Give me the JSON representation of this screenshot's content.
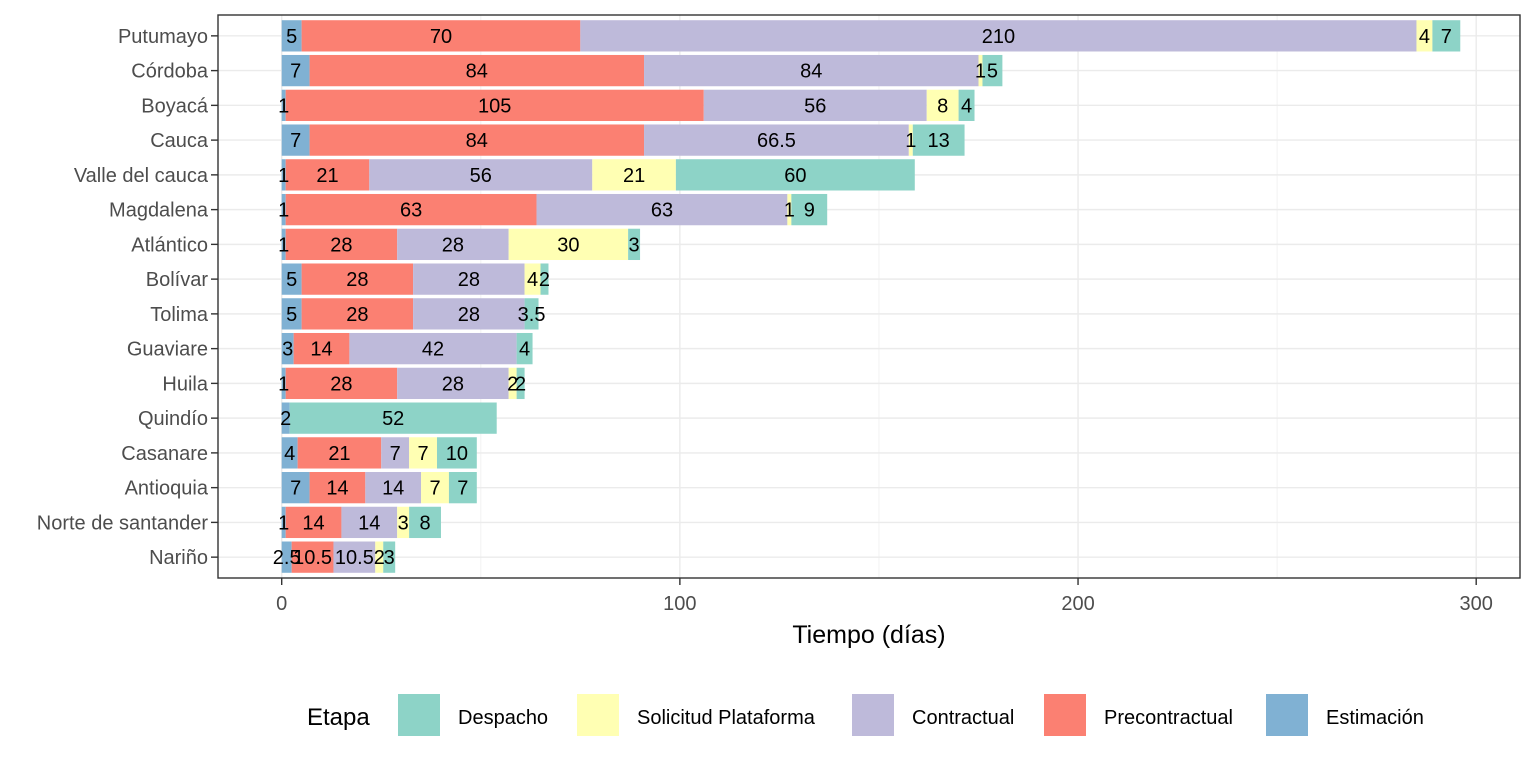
{
  "chart_data": {
    "type": "bar",
    "orientation": "horizontal",
    "stacked": true,
    "title": "",
    "xlabel": "Tiempo (días)",
    "ylabel": "",
    "xlim": [
      -16,
      311
    ],
    "xticks": [
      0,
      100,
      200,
      300
    ],
    "grid": true,
    "legend": {
      "title": "Etapa",
      "position": "bottom",
      "entries": [
        "Despacho",
        "Solicitud Plataforma",
        "Contractual",
        "Precontractual",
        "Estimación"
      ]
    },
    "stack_order": [
      "Estimación",
      "Precontractual",
      "Contractual",
      "Solicitud Plataforma",
      "Despacho"
    ],
    "colors": {
      "Despacho": "#8DD3C7",
      "Solicitud Plataforma": "#FFFFB3",
      "Contractual": "#BEBADA",
      "Precontractual": "#FB8072",
      "Estimación": "#80B1D3"
    },
    "categories": [
      "Putumayo",
      "Córdoba",
      "Boyacá",
      "Cauca",
      "Valle del cauca",
      "Magdalena",
      "Atlántico",
      "Bolívar",
      "Tolima",
      "Guaviare",
      "Huila",
      "Quindío",
      "Casanare",
      "Antioquia",
      "Norte de santander",
      "Nariño"
    ],
    "series": [
      {
        "name": "Estimación",
        "values": [
          5,
          7,
          1,
          7,
          1,
          1,
          1,
          5,
          5,
          3,
          1,
          2,
          4,
          7,
          1,
          2.5
        ]
      },
      {
        "name": "Precontractual",
        "values": [
          70,
          84,
          105,
          84,
          21,
          63,
          28,
          28,
          28,
          14,
          28,
          0,
          21,
          14,
          14,
          10.5
        ]
      },
      {
        "name": "Contractual",
        "values": [
          210,
          84,
          56,
          66.5,
          56,
          63,
          28,
          28,
          28,
          42,
          28,
          0,
          7,
          14,
          14,
          10.5
        ]
      },
      {
        "name": "Solicitud Plataforma",
        "values": [
          4,
          1,
          8,
          1,
          21,
          1,
          30,
          4,
          0,
          0,
          2,
          0,
          7,
          7,
          3,
          2
        ]
      },
      {
        "name": "Despacho",
        "values": [
          7,
          5,
          4,
          13,
          60,
          9,
          3,
          2,
          3.5,
          4,
          2,
          52,
          10,
          7,
          8,
          3
        ]
      }
    ],
    "labels": [
      [
        "5",
        "70",
        "210",
        "4",
        "7"
      ],
      [
        "7",
        "84",
        "84",
        "1",
        "5"
      ],
      [
        "1",
        "105",
        "56",
        "8",
        "4"
      ],
      [
        "7",
        "84",
        "66.5",
        "1",
        "13"
      ],
      [
        "1",
        "21",
        "56",
        "21",
        "60"
      ],
      [
        "1",
        "63",
        "63",
        "1",
        "9"
      ],
      [
        "1",
        "28",
        "28",
        "30",
        "3"
      ],
      [
        "5",
        "28",
        "28",
        "4",
        "2"
      ],
      [
        "5",
        "28",
        "28",
        "",
        "3.5"
      ],
      [
        "3",
        "14",
        "42",
        "",
        "4"
      ],
      [
        "1",
        "28",
        "28",
        "2",
        "2"
      ],
      [
        "2",
        "",
        "",
        "",
        "52"
      ],
      [
        "4",
        "21",
        "7",
        "7",
        "10"
      ],
      [
        "7",
        "14",
        "14",
        "7",
        "7"
      ],
      [
        "1",
        "14",
        "14",
        "3",
        "8"
      ],
      [
        "2.5",
        "10.5",
        "10.5",
        "2",
        "3"
      ]
    ]
  }
}
